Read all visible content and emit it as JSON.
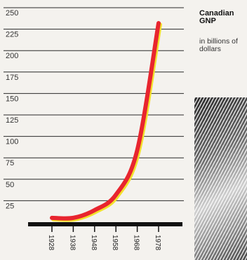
{
  "chart_data": {
    "type": "line",
    "title": "Canadian GNP",
    "subtitle": "in billions of dollars",
    "x": [
      1928,
      1938,
      1948,
      1958,
      1968,
      1978
    ],
    "xticks": [
      "1928",
      "1938",
      "1948",
      "1958",
      "1968",
      "1978"
    ],
    "series": [
      {
        "values": [
          5,
          5,
          14,
          32,
          84,
          232
        ]
      }
    ],
    "yticks": [
      25,
      50,
      75,
      100,
      125,
      150,
      175,
      200,
      225,
      250
    ],
    "ylim": [
      0,
      250
    ],
    "xlim": [
      1928,
      1978
    ],
    "grid": true,
    "colors": {
      "line": "#e8252e",
      "line_shadow": "#f2e12c",
      "baseline": "#111111"
    }
  }
}
